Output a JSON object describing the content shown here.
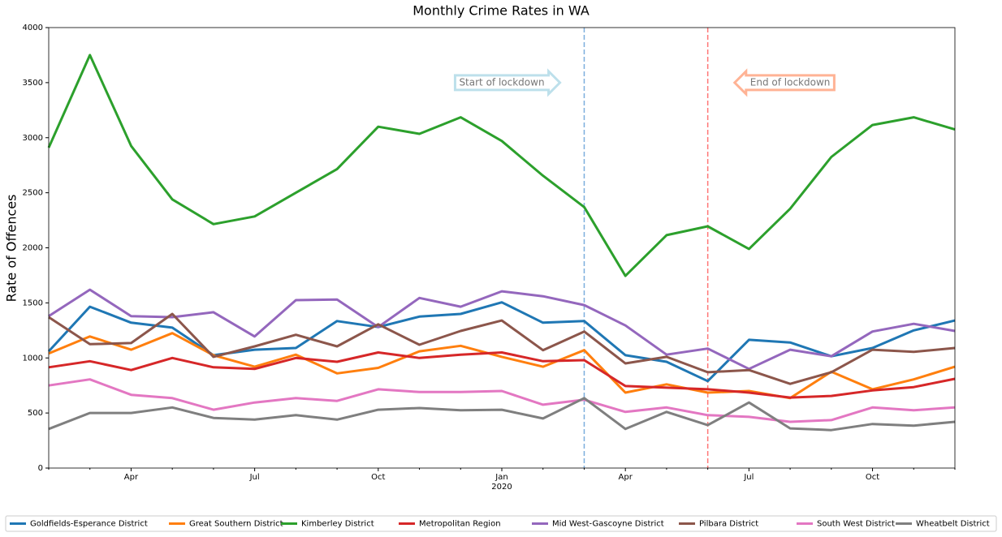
{
  "chart_data": {
    "type": "line",
    "title": "Monthly Crime Rates in WA",
    "y_label": "Rate of Offences",
    "categories": [
      null,
      null,
      "Apr",
      null,
      null,
      "Jul",
      null,
      null,
      "Oct",
      null,
      null,
      "Jan\n2020",
      null,
      null,
      "Apr",
      null,
      null,
      "Jul",
      null,
      null,
      "Oct",
      null,
      null
    ],
    "ylim": [
      0,
      4000
    ],
    "yticks": [
      0,
      500,
      1000,
      1500,
      2000,
      2500,
      3000,
      3500,
      4000
    ],
    "grid": false,
    "legend": "bottom",
    "series": [
      {
        "name": "Goldfields-Esperance District",
        "color": "#1f77b4",
        "values": [
          1060,
          1465,
          1320,
          1275,
          1025,
          1075,
          1090,
          1335,
          1280,
          1375,
          1400,
          1505,
          1320,
          1335,
          1025,
          965,
          790,
          1165,
          1140,
          1015,
          1090,
          1250,
          1340
        ]
      },
      {
        "name": "Great Southern District",
        "color": "#ff7f0e",
        "values": [
          1040,
          1195,
          1075,
          1225,
          1025,
          920,
          1030,
          860,
          910,
          1060,
          1110,
          1010,
          920,
          1070,
          685,
          760,
          685,
          700,
          635,
          875,
          715,
          805,
          920
        ]
      },
      {
        "name": "Kimberley District",
        "color": "#2ca02c",
        "values": [
          2910,
          3750,
          2925,
          2440,
          2215,
          2285,
          2500,
          2715,
          3100,
          3035,
          3185,
          2970,
          2655,
          2370,
          1745,
          2115,
          2195,
          1990,
          2355,
          2825,
          3115,
          3185,
          3075
        ]
      },
      {
        "name": "Metropolitan Region",
        "color": "#d62728",
        "values": [
          915,
          970,
          890,
          1000,
          915,
          900,
          1000,
          965,
          1050,
          1000,
          1030,
          1050,
          970,
          980,
          745,
          730,
          715,
          685,
          640,
          655,
          705,
          735,
          810
        ]
      },
      {
        "name": "Mid West-Gascoyne District",
        "color": "#9467bd",
        "values": [
          1380,
          1620,
          1380,
          1370,
          1415,
          1195,
          1525,
          1530,
          1280,
          1545,
          1465,
          1605,
          1560,
          1480,
          1295,
          1030,
          1085,
          900,
          1075,
          1015,
          1240,
          1310,
          1245
        ]
      },
      {
        "name": "Pilbara District",
        "color": "#8c564b",
        "values": [
          1370,
          1125,
          1135,
          1400,
          1010,
          1105,
          1210,
          1105,
          1305,
          1120,
          1245,
          1340,
          1070,
          1240,
          950,
          1010,
          870,
          890,
          765,
          870,
          1075,
          1055,
          1090
        ]
      },
      {
        "name": "South West District",
        "color": "#e377c2",
        "values": [
          750,
          805,
          665,
          635,
          530,
          595,
          635,
          610,
          715,
          690,
          690,
          700,
          575,
          620,
          510,
          550,
          480,
          465,
          420,
          435,
          550,
          525,
          550
        ]
      },
      {
        "name": "Wheatbelt District",
        "color": "#7f7f7f",
        "values": [
          355,
          500,
          500,
          550,
          455,
          440,
          480,
          440,
          530,
          545,
          525,
          530,
          450,
          635,
          355,
          510,
          390,
          595,
          360,
          345,
          400,
          385,
          420
        ]
      }
    ],
    "vlines": [
      {
        "x": 13,
        "color": "#5b9bd5"
      },
      {
        "x": 16,
        "color": "#ff5555"
      }
    ],
    "annotations": [
      {
        "text": "Start of lockdown",
        "x": 11,
        "y": 3500,
        "direction": "right",
        "color": "#add8e6"
      },
      {
        "text": "End of lockdown",
        "x": 18,
        "y": 3500,
        "direction": "left",
        "color": "#ffa07a"
      }
    ]
  }
}
